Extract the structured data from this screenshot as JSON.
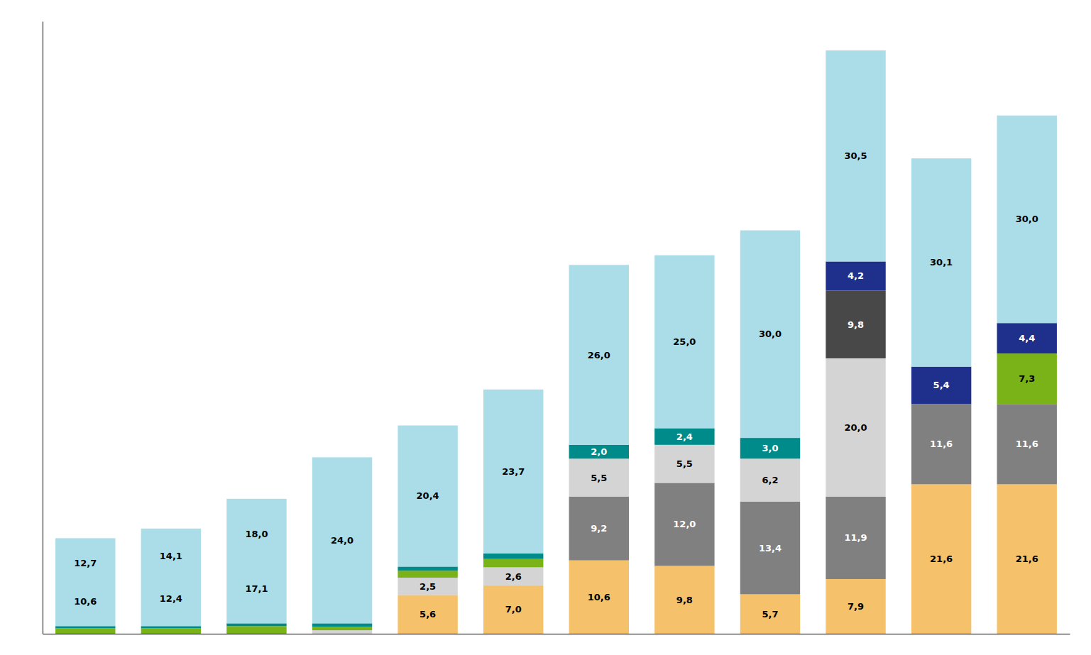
{
  "chart_data": {
    "type": "bar",
    "stacked": true,
    "data_labels": true,
    "tick_labels": false,
    "categories": [
      null,
      null,
      null,
      null,
      null,
      null,
      null,
      null,
      null,
      null,
      null,
      null
    ],
    "ylim": [
      0,
      88.515
    ],
    "series": [
      {
        "color": "#f5c26b",
        "values": [
          0.0,
          0.0,
          0.0,
          0.0,
          5.6,
          7.0,
          10.6,
          9.8,
          5.7,
          7.9,
          21.6,
          21.6
        ],
        "value_labels": [
          null,
          null,
          null,
          null,
          "5,6",
          "7,0",
          "10,6",
          "9,8",
          "5,7",
          "7,9",
          "21,6",
          "21,6"
        ]
      },
      {
        "color": "#808080",
        "values": [
          0.0,
          0.0,
          0.0,
          0.0,
          0.0,
          0.0,
          9.2,
          12.0,
          13.4,
          11.9,
          11.6,
          11.6
        ],
        "value_labels": [
          null,
          null,
          null,
          null,
          null,
          null,
          "9,2",
          "12,0",
          "13,4",
          "11,9",
          "11,6",
          "11,6"
        ]
      },
      {
        "color": "#d4d4d4",
        "values": [
          0.0,
          0.0,
          0.0,
          0.5,
          2.5,
          2.6,
          5.5,
          5.5,
          6.2,
          20.0,
          0.0,
          0.0
        ],
        "value_labels": [
          null,
          null,
          null,
          null,
          "2,5",
          "2,6",
          "5,5",
          "5,5",
          "6,2",
          "20,0",
          null,
          null
        ]
      },
      {
        "color": "#484848",
        "values": [
          0.0,
          0.0,
          0.0,
          0.0,
          0.0,
          0.0,
          0.0,
          0.0,
          0.0,
          9.8,
          0.0,
          0.0
        ],
        "value_labels": [
          null,
          null,
          null,
          null,
          null,
          null,
          null,
          null,
          null,
          "9,8",
          null,
          null
        ]
      },
      {
        "color": "#7ab317",
        "values": [
          0.8,
          0.8,
          1.1,
          0.5,
          1.0,
          1.2,
          0.0,
          0.0,
          0.0,
          0.0,
          0.0,
          7.3
        ],
        "value_labels": [
          null,
          null,
          null,
          null,
          null,
          null,
          null,
          null,
          null,
          null,
          null,
          "7,3"
        ]
      },
      {
        "color": "#008b8b",
        "values": [
          0.3,
          0.3,
          0.4,
          0.5,
          0.6,
          0.8,
          2.0,
          2.4,
          3.0,
          0.0,
          0.0,
          0.0
        ],
        "value_labels": [
          null,
          null,
          null,
          null,
          null,
          null,
          "2,0",
          "2,4",
          "3,0",
          null,
          null,
          null
        ]
      },
      {
        "color": "#1f2f8c",
        "values": [
          0.0,
          0.0,
          0.0,
          0.0,
          0.0,
          0.0,
          0.0,
          0.0,
          0.0,
          4.2,
          5.4,
          4.4
        ],
        "value_labels": [
          null,
          null,
          null,
          null,
          null,
          null,
          null,
          null,
          null,
          "4,2",
          "5,4",
          "4,4"
        ]
      },
      {
        "color": "#aadde8",
        "values": [
          12.7,
          14.1,
          18.0,
          24.0,
          20.4,
          23.7,
          26.0,
          25.0,
          30.0,
          30.5,
          30.1,
          30.0
        ],
        "value_labels": [
          "12,7",
          "14,1",
          "18,0",
          "24,0",
          "20,4",
          "23,7",
          "26,0",
          "25,0",
          "30,0",
          "30,5",
          "30,1",
          "30,0"
        ]
      }
    ],
    "annotations": [
      {
        "text": "10,6",
        "series": 7,
        "category": 0
      },
      {
        "text": "12,4",
        "series": 7,
        "category": 1
      },
      {
        "text": "17,1",
        "series": 7,
        "category": 2
      }
    ]
  }
}
